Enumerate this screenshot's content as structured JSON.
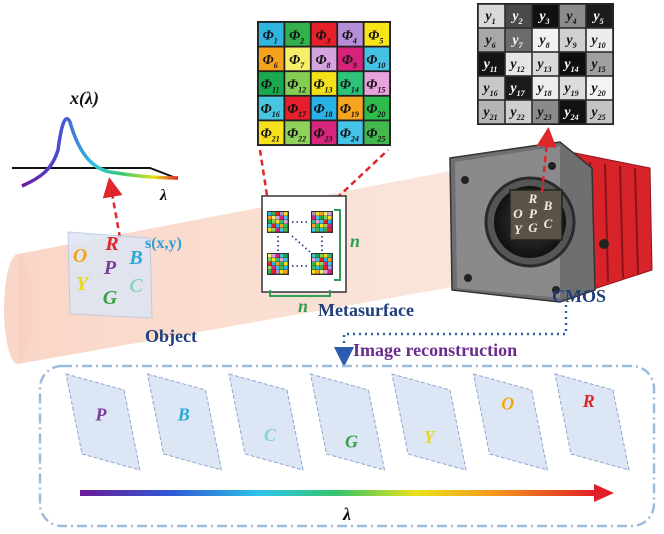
{
  "spectrum": {
    "title": "x(λ)",
    "axis_label": "λ"
  },
  "object": {
    "label": "Object",
    "signal": "s(x,y)",
    "letters": [
      {
        "char": "O",
        "color": "#f2a516"
      },
      {
        "char": "R",
        "color": "#e0262a"
      },
      {
        "char": "P",
        "color": "#7a3b9a"
      },
      {
        "char": "B",
        "color": "#2aa8d8"
      },
      {
        "char": "Y",
        "color": "#e9d81a"
      },
      {
        "char": "G",
        "color": "#3aa04a"
      },
      {
        "char": "C",
        "color": "#86d4c4"
      }
    ]
  },
  "metasurface": {
    "label": "Metasurface",
    "n_right": "n",
    "n_bottom": "n",
    "phi_grid": {
      "prefix": "Φ",
      "cells": [
        {
          "sub": "1",
          "color": "#2fb6e0"
        },
        {
          "sub": "2",
          "color": "#31b04b"
        },
        {
          "sub": "3",
          "color": "#e8202a"
        },
        {
          "sub": "4",
          "color": "#b68ed8"
        },
        {
          "sub": "5",
          "color": "#f7e51a"
        },
        {
          "sub": "6",
          "color": "#f4a21c"
        },
        {
          "sub": "7",
          "color": "#f6ef6a"
        },
        {
          "sub": "8",
          "color": "#d5a3dd"
        },
        {
          "sub": "9",
          "color": "#d6227a"
        },
        {
          "sub": "10",
          "color": "#45c1e3"
        },
        {
          "sub": "11",
          "color": "#19a94e"
        },
        {
          "sub": "12",
          "color": "#83cf54"
        },
        {
          "sub": "13",
          "color": "#f4e11a"
        },
        {
          "sub": "14",
          "color": "#2ec37a"
        },
        {
          "sub": "15",
          "color": "#e8a2dc"
        },
        {
          "sub": "16",
          "color": "#46c6e0"
        },
        {
          "sub": "17",
          "color": "#e51f2c"
        },
        {
          "sub": "18",
          "color": "#29b2e6"
        },
        {
          "sub": "19",
          "color": "#f7a41f"
        },
        {
          "sub": "20",
          "color": "#2cbd4d"
        },
        {
          "sub": "21",
          "color": "#f6e21c"
        },
        {
          "sub": "22",
          "color": "#8fd25c"
        },
        {
          "sub": "23",
          "color": "#d8257e"
        },
        {
          "sub": "24",
          "color": "#45c2e8"
        },
        {
          "sub": "25",
          "color": "#43b84f"
        }
      ]
    }
  },
  "cmos": {
    "label": "CMOS",
    "y_grid": {
      "prefix": "y",
      "cells": [
        {
          "sub": "1",
          "gray": "#d9d9d9"
        },
        {
          "sub": "2",
          "gray": "#4a4a4a"
        },
        {
          "sub": "3",
          "gray": "#111111"
        },
        {
          "sub": "4",
          "gray": "#8c8c8c"
        },
        {
          "sub": "5",
          "gray": "#1c1c1c"
        },
        {
          "sub": "6",
          "gray": "#a8a8a8"
        },
        {
          "sub": "7",
          "gray": "#6b6b6b"
        },
        {
          "sub": "8",
          "gray": "#f2f2f2"
        },
        {
          "sub": "9",
          "gray": "#d0d0d0"
        },
        {
          "sub": "10",
          "gray": "#ececec"
        },
        {
          "sub": "11",
          "gray": "#151515"
        },
        {
          "sub": "12",
          "gray": "#e6e6e6"
        },
        {
          "sub": "13",
          "gray": "#d9d9d9"
        },
        {
          "sub": "14",
          "gray": "#0e0e0e"
        },
        {
          "sub": "15",
          "gray": "#a0a0a0"
        },
        {
          "sub": "16",
          "gray": "#c8c8c8"
        },
        {
          "sub": "17",
          "gray": "#1a1a1a"
        },
        {
          "sub": "18",
          "gray": "#ededed"
        },
        {
          "sub": "19",
          "gray": "#dcdcdc"
        },
        {
          "sub": "20",
          "gray": "#f4f4f4"
        },
        {
          "sub": "21",
          "gray": "#b4b4b4"
        },
        {
          "sub": "22",
          "gray": "#cfcfcf"
        },
        {
          "sub": "23",
          "gray": "#8a8a8a"
        },
        {
          "sub": "24",
          "gray": "#111111"
        },
        {
          "sub": "25",
          "gray": "#c4c4c4"
        }
      ]
    },
    "sensor_letters": [
      "R",
      "O",
      "P",
      "B",
      "Y",
      "G",
      "C"
    ]
  },
  "reconstruction": {
    "label": "Image reconstruction",
    "axis_label": "λ",
    "frames": [
      {
        "char": "P",
        "color": "#7a3b9a"
      },
      {
        "char": "B",
        "color": "#2aa8d8"
      },
      {
        "char": "C",
        "color": "#86d4c4"
      },
      {
        "char": "G",
        "color": "#3aa04a"
      },
      {
        "char": "Y",
        "color": "#e9d81a"
      },
      {
        "char": "O",
        "color": "#f2a516"
      },
      {
        "char": "R",
        "color": "#e0262a"
      }
    ]
  },
  "colors": {
    "label_blue": "#1f3f7a",
    "metasurface_n": "#2e9e55",
    "reconstruction_purple": "#6a2c8c",
    "signal_blue": "#2a9ed8",
    "arrow_red": "#e0262a",
    "cmos_red": "#d9232a"
  }
}
